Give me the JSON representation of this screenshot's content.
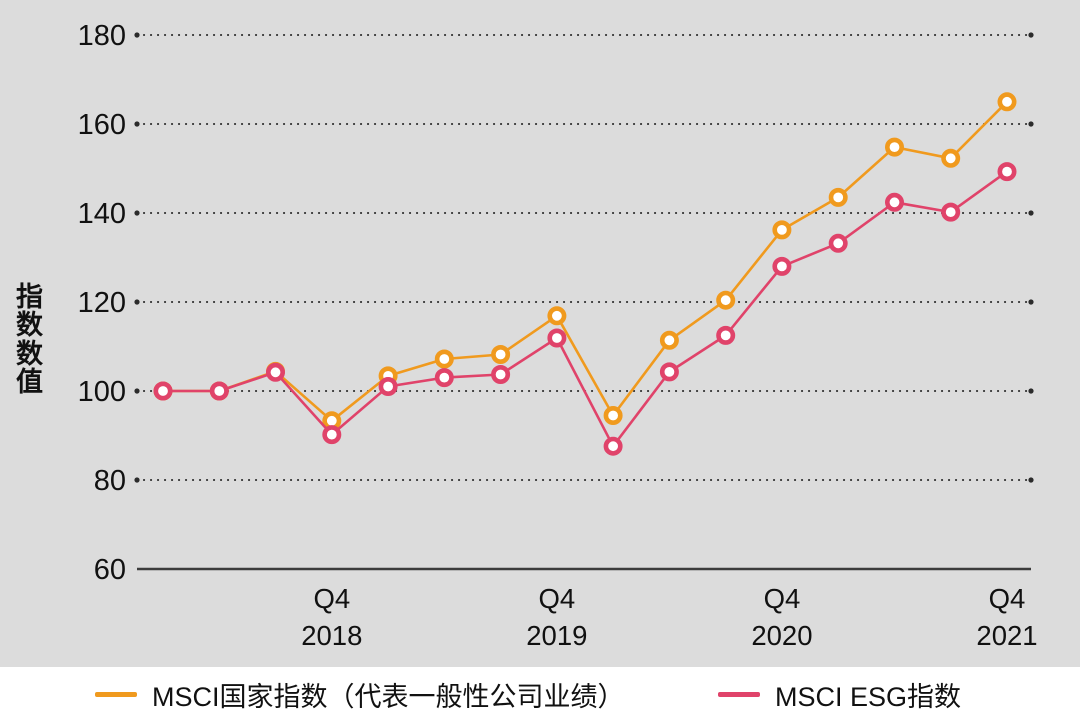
{
  "colors": {
    "panel_background": "#dcdcdc",
    "legend_background": "#ffffff",
    "grid_dots": "#2b2b2b",
    "axis_line": "#3c3c3c",
    "text": "#111111",
    "series_country": "#f09a1e",
    "series_esg": "#e0436a",
    "marker_fill": "#ffffff"
  },
  "y_axis_title": "指数数值",
  "legend": {
    "items": [
      {
        "label": "MSCI国家指数（代表一般性公司业绩）",
        "color": "#f09a1e"
      },
      {
        "label": "MSCI ESG指数",
        "color": "#e0436a"
      }
    ]
  },
  "chart_data": {
    "type": "line",
    "title": "",
    "xlabel": "",
    "ylabel": "指数数值",
    "ylim": [
      60,
      180
    ],
    "yticks": [
      60,
      80,
      100,
      120,
      140,
      160,
      180
    ],
    "grid": "dotted-horizontal",
    "legend_position": "bottom",
    "x": [
      "2018 Q1",
      "2018 Q2",
      "2018 Q3",
      "2018 Q4",
      "2019 Q1",
      "2019 Q2",
      "2019 Q3",
      "2019 Q4",
      "2020 Q1",
      "2020 Q2",
      "2020 Q3",
      "2020 Q4",
      "2021 Q1",
      "2021 Q2",
      "2021 Q3",
      "2021 Q4"
    ],
    "x_tick_labels": [
      {
        "index": 3,
        "line1": "Q4",
        "line2": "2018"
      },
      {
        "index": 7,
        "line1": "Q4",
        "line2": "2019"
      },
      {
        "index": 11,
        "line1": "Q4",
        "line2": "2020"
      },
      {
        "index": 15,
        "line1": "Q4",
        "line2": "2021"
      }
    ],
    "series": [
      {
        "name": "MSCI国家指数（代表一般性公司业绩）",
        "color": "#f09a1e",
        "values": [
          100.0,
          100.0,
          104.4,
          93.3,
          103.4,
          107.2,
          108.2,
          116.9,
          94.5,
          111.4,
          120.4,
          136.2,
          143.5,
          154.8,
          152.3,
          165.0
        ]
      },
      {
        "name": "MSCI ESG指数",
        "color": "#e0436a",
        "values": [
          100.0,
          100.0,
          104.2,
          90.2,
          101.0,
          103.0,
          103.7,
          111.9,
          87.6,
          104.3,
          112.5,
          128.0,
          133.2,
          142.4,
          140.2,
          149.3
        ]
      }
    ]
  }
}
